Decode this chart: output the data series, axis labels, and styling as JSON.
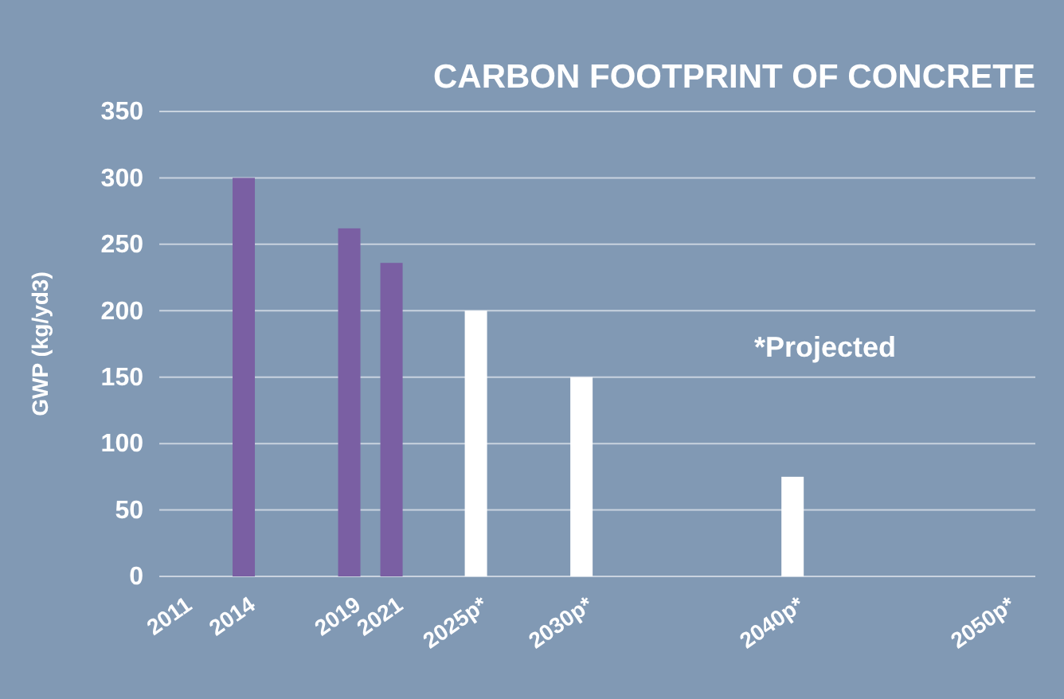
{
  "chart_data": {
    "type": "bar",
    "title": "CARBON FOOTPRINT OF CONCRETE",
    "ylabel": "GWP (kg/yd3)",
    "x": [
      2014,
      2019,
      2021,
      2025,
      2030,
      2040
    ],
    "values": [
      300,
      262,
      236,
      200,
      150,
      75
    ],
    "colors": [
      "#7a5fa3",
      "#7a5fa3",
      "#7a5fa3",
      "#ffffff",
      "#ffffff",
      "#ffffff"
    ],
    "xlim": [
      2010,
      2051.5
    ],
    "xticks": [
      2011,
      2014,
      2019,
      2021,
      {
        "value": 2025,
        "label": "2025p*"
      },
      {
        "value": 2030,
        "label": "2030p*"
      },
      {
        "value": 2040,
        "label": "2040p*"
      },
      {
        "value": 2050,
        "label": "2050p*"
      }
    ],
    "ylim": [
      0,
      350
    ],
    "yticks": [
      0,
      50,
      100,
      150,
      200,
      250,
      300,
      350
    ],
    "grid": "y",
    "annotations": [
      "*Projected"
    ]
  }
}
